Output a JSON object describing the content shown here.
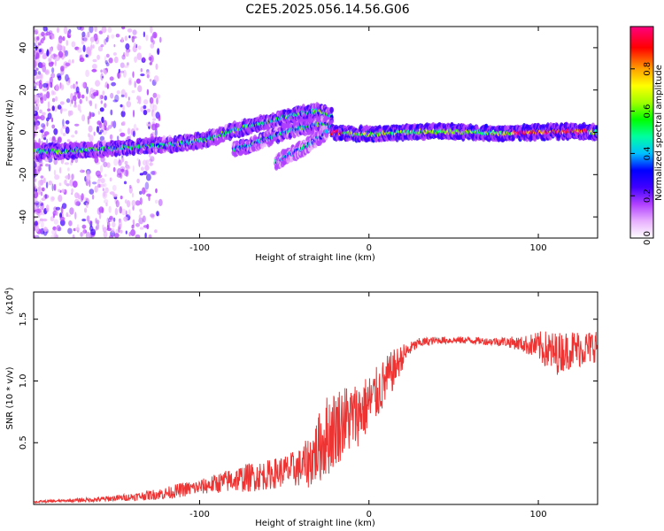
{
  "title": "C2E5.2025.056.14.56.G06",
  "chart_data": [
    {
      "type": "heatmap",
      "xlabel": "Height of straight line (km)",
      "ylabel": "Frequency (Hz)",
      "xlim": [
        -198,
        135
      ],
      "ylim": [
        -50,
        50
      ],
      "x_ticks": [
        -100,
        0,
        100
      ],
      "y_ticks": [
        -40,
        -20,
        0,
        20,
        40
      ],
      "colorbar": {
        "label": "Normalized spectral amplitude",
        "range": [
          0.0,
          1.0
        ],
        "ticks": [
          0.0,
          0.2,
          0.4,
          0.6,
          0.8
        ],
        "tick_labels": [
          "0.0",
          "0.2",
          "0.4",
          "0.6",
          "0.8"
        ],
        "colors": [
          "#ffffff",
          "#e8b0ff",
          "#b040ff",
          "#4000ff",
          "#0000ff",
          "#00c0ff",
          "#00ffa0",
          "#00ff00",
          "#a0ff00",
          "#ffff00",
          "#ffa000",
          "#ff0000",
          "#ff0080"
        ]
      },
      "ridges": [
        {
          "x": [
            -198,
            -180,
            -160,
            -140,
            -120,
            -100,
            -90,
            -80,
            -70,
            -60,
            -50,
            -40,
            -30,
            -22
          ],
          "y": [
            -9,
            -9,
            -8,
            -7,
            -6,
            -4,
            -2,
            1,
            3,
            5,
            7,
            9,
            10,
            8
          ],
          "amplitude": 0.45
        },
        {
          "x": [
            -80,
            -70,
            -60,
            -50,
            -40,
            -30,
            -22
          ],
          "y": [
            -8,
            -6,
            -3,
            0,
            2,
            4,
            3
          ],
          "amplitude": 0.4
        },
        {
          "x": [
            -55,
            -48,
            -40,
            -32,
            -25
          ],
          "y": [
            -14,
            -11,
            -8,
            -4,
            0
          ],
          "amplitude": 0.35
        },
        {
          "x": [
            -22,
            -10,
            0,
            20,
            40,
            60,
            80,
            100,
            120,
            135
          ],
          "y": [
            0,
            -0.5,
            -1,
            0,
            0.5,
            0,
            -0.5,
            0,
            0.5,
            0
          ],
          "amplitude": 0.55
        }
      ]
    },
    {
      "type": "line",
      "xlabel": "Height of straight line (km)",
      "ylabel": "SNR (10 * v/v)",
      "y_multiplier": "(x10",
      "y_multiplier_exp": "4",
      "y_multiplier_close": ")",
      "xlim": [
        -198,
        135
      ],
      "ylim": [
        0,
        1.72
      ],
      "x_ticks": [
        -100,
        0,
        100
      ],
      "y_ticks": [
        0.5,
        1.0,
        1.5
      ],
      "y_tick_labels": [
        "0.5",
        "1.0",
        "1.5"
      ],
      "series": [
        {
          "color": "#ee3333",
          "x": [
            -198,
            -180,
            -160,
            -140,
            -120,
            -110,
            -100,
            -90,
            -80,
            -70,
            -60,
            -50,
            -40,
            -35,
            -30,
            -25,
            -20,
            -15,
            -10,
            -5,
            0,
            5,
            10,
            15,
            20,
            25,
            30,
            40,
            50,
            60,
            70,
            80,
            90,
            100,
            105,
            110,
            115,
            120,
            125,
            130,
            135
          ],
          "y": [
            0.02,
            0.03,
            0.04,
            0.06,
            0.09,
            0.12,
            0.14,
            0.17,
            0.2,
            0.22,
            0.24,
            0.27,
            0.3,
            0.35,
            0.45,
            0.55,
            0.62,
            0.68,
            0.7,
            0.75,
            0.82,
            0.9,
            1.0,
            1.1,
            1.2,
            1.27,
            1.31,
            1.33,
            1.33,
            1.33,
            1.32,
            1.32,
            1.3,
            1.28,
            1.25,
            1.22,
            1.24,
            1.26,
            1.26,
            1.27,
            1.3
          ],
          "noise": [
            0.01,
            0.01,
            0.02,
            0.03,
            0.05,
            0.06,
            0.06,
            0.08,
            0.1,
            0.12,
            0.12,
            0.13,
            0.16,
            0.22,
            0.28,
            0.34,
            0.32,
            0.3,
            0.28,
            0.26,
            0.24,
            0.22,
            0.2,
            0.16,
            0.1,
            0.05,
            0.04,
            0.03,
            0.03,
            0.03,
            0.03,
            0.04,
            0.06,
            0.12,
            0.16,
            0.18,
            0.16,
            0.16,
            0.15,
            0.14,
            0.14
          ]
        }
      ]
    }
  ]
}
